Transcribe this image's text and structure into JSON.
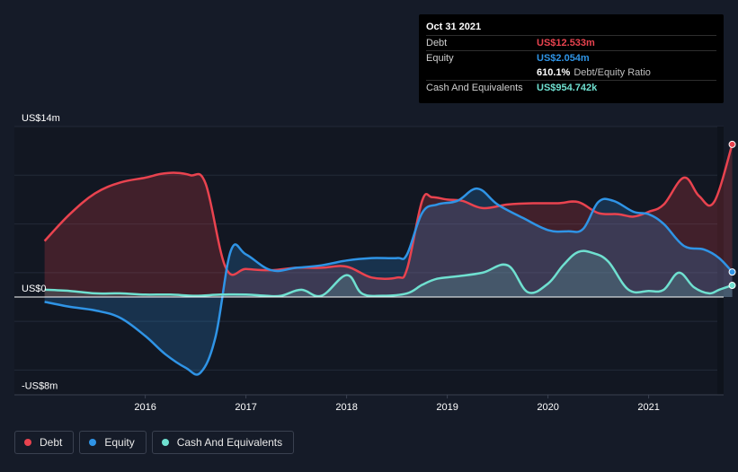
{
  "tooltip": {
    "date": "Oct 31 2021",
    "rows": [
      {
        "label": "Debt",
        "value": "US$12.533m",
        "color": "#e9434f"
      },
      {
        "label": "Equity",
        "value": "US$2.054m",
        "color": "#2f94e6"
      },
      {
        "label": "",
        "value": "610.1%",
        "extra": "Debt/Equity Ratio",
        "color": "#ffffff"
      },
      {
        "label": "Cash And Equivalents",
        "value": "US$954.742k",
        "color": "#6fe0d0"
      }
    ]
  },
  "legend": [
    {
      "label": "Debt",
      "color": "#e9434f"
    },
    {
      "label": "Equity",
      "color": "#2f94e6"
    },
    {
      "label": "Cash And Equivalents",
      "color": "#6fe0d0"
    }
  ],
  "chart_data": {
    "type": "area",
    "title": "",
    "xlabel": "",
    "ylabel": "",
    "ylim": [
      -8,
      14
    ],
    "y_tick_labels": [
      "US$14m",
      "US$0",
      "-US$8m"
    ],
    "y_tick_values": [
      14,
      0,
      -8
    ],
    "x_tick_labels": [
      "2016",
      "2017",
      "2018",
      "2019",
      "2020",
      "2021"
    ],
    "x_tick_values": [
      2016,
      2017,
      2018,
      2019,
      2020,
      2021
    ],
    "xlim": [
      2014.7,
      2021.85
    ],
    "series": [
      {
        "name": "Debt",
        "color": "#e9434f",
        "x": [
          2015.0,
          2015.25,
          2015.5,
          2015.75,
          2016.0,
          2016.15,
          2016.3,
          2016.45,
          2016.6,
          2016.8,
          2017.0,
          2017.25,
          2017.5,
          2017.75,
          2018.0,
          2018.25,
          2018.5,
          2018.6,
          2018.75,
          2018.85,
          2019.0,
          2019.15,
          2019.35,
          2019.6,
          2019.85,
          2020.1,
          2020.3,
          2020.5,
          2020.7,
          2020.85,
          2021.0,
          2021.15,
          2021.35,
          2021.5,
          2021.65,
          2021.83
        ],
        "values": [
          4.6,
          6.8,
          8.5,
          9.4,
          9.8,
          10.1,
          10.2,
          10.0,
          9.3,
          2.4,
          2.3,
          2.2,
          2.4,
          2.4,
          2.5,
          1.6,
          1.6,
          2.3,
          7.9,
          8.2,
          8.0,
          7.9,
          7.3,
          7.6,
          7.7,
          7.7,
          7.8,
          6.9,
          6.8,
          6.6,
          7.0,
          7.6,
          9.8,
          8.3,
          7.8,
          12.533
        ]
      },
      {
        "name": "Equity",
        "color": "#2f94e6",
        "x": [
          2015.0,
          2015.25,
          2015.5,
          2015.75,
          2016.0,
          2016.2,
          2016.4,
          2016.55,
          2016.7,
          2016.85,
          2017.0,
          2017.25,
          2017.5,
          2017.75,
          2018.0,
          2018.25,
          2018.5,
          2018.6,
          2018.75,
          2018.9,
          2019.1,
          2019.3,
          2019.5,
          2019.75,
          2020.0,
          2020.2,
          2020.35,
          2020.5,
          2020.65,
          2020.85,
          2021.0,
          2021.15,
          2021.35,
          2021.55,
          2021.7,
          2021.83
        ],
        "values": [
          -0.4,
          -0.8,
          -1.1,
          -1.7,
          -3.2,
          -4.7,
          -5.8,
          -6.2,
          -3.2,
          3.8,
          3.5,
          2.2,
          2.4,
          2.6,
          3.0,
          3.2,
          3.2,
          3.5,
          6.9,
          7.6,
          7.9,
          8.9,
          7.6,
          6.5,
          5.5,
          5.4,
          5.6,
          7.8,
          7.9,
          7.0,
          6.8,
          6.0,
          4.2,
          3.9,
          3.2,
          2.054
        ]
      },
      {
        "name": "Cash And Equivalents",
        "color": "#6fe0d0",
        "x": [
          2015.0,
          2015.25,
          2015.5,
          2015.75,
          2016.0,
          2016.25,
          2016.5,
          2016.75,
          2017.0,
          2017.2,
          2017.35,
          2017.55,
          2017.75,
          2018.0,
          2018.15,
          2018.35,
          2018.6,
          2018.75,
          2018.9,
          2019.1,
          2019.35,
          2019.6,
          2019.8,
          2020.0,
          2020.15,
          2020.3,
          2020.45,
          2020.6,
          2020.8,
          2021.0,
          2021.15,
          2021.3,
          2021.45,
          2021.6,
          2021.7,
          2021.83
        ],
        "values": [
          0.6,
          0.5,
          0.3,
          0.3,
          0.2,
          0.2,
          0.1,
          0.2,
          0.2,
          0.1,
          0.1,
          0.6,
          0.1,
          1.8,
          0.3,
          0.1,
          0.3,
          1.0,
          1.5,
          1.7,
          2.0,
          2.6,
          0.4,
          1.1,
          2.6,
          3.7,
          3.6,
          2.9,
          0.6,
          0.5,
          0.6,
          2.0,
          0.8,
          0.3,
          0.6,
          0.954742
        ]
      }
    ]
  }
}
